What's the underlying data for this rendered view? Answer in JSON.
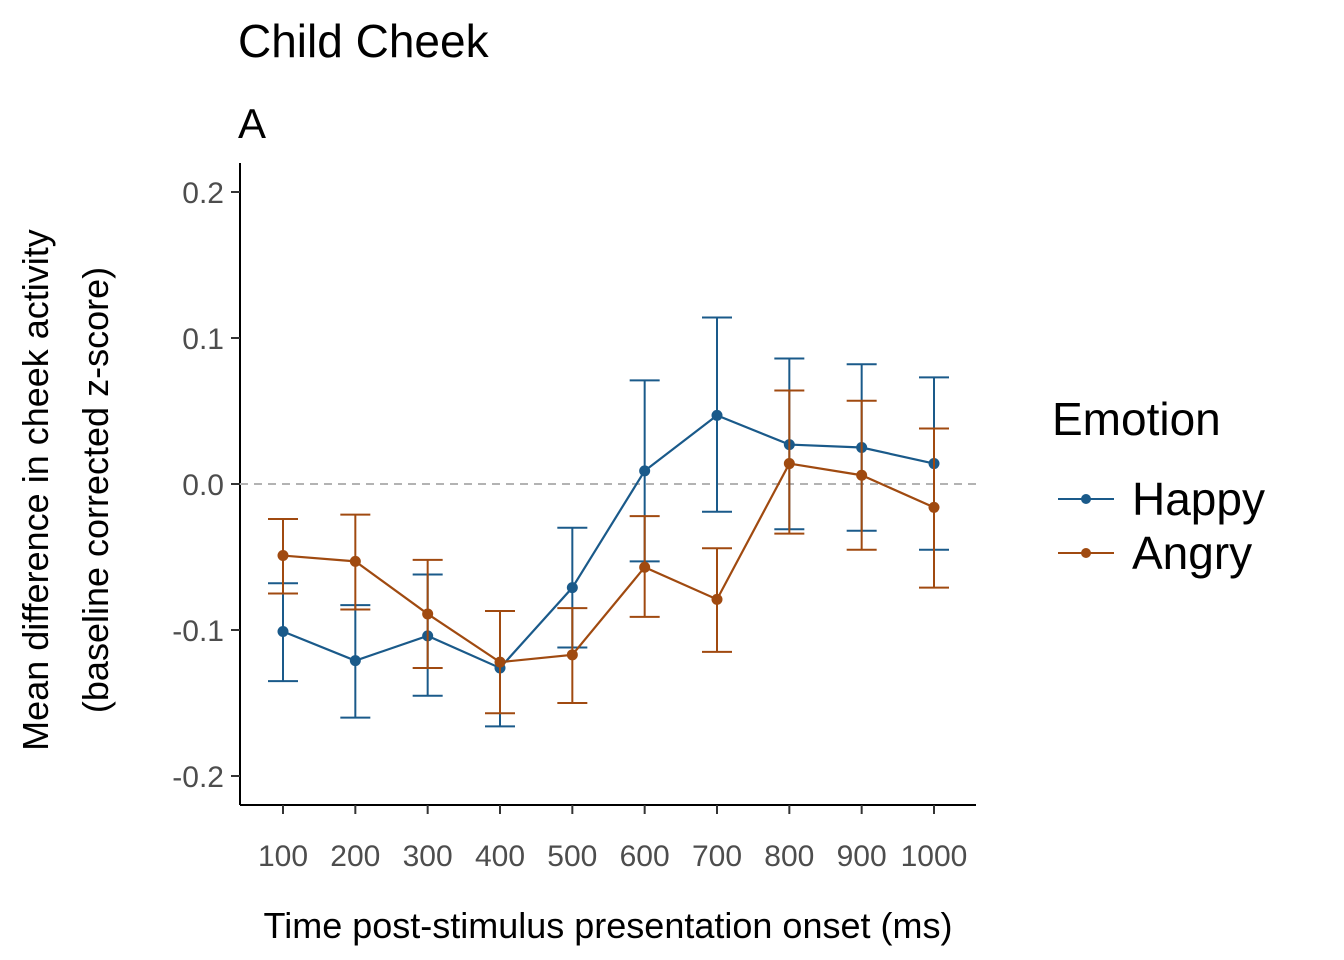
{
  "chart_data": {
    "type": "line",
    "title": "Child Cheek",
    "subtitle": "A",
    "xlabel": "Time post-stimulus presentation onset (ms)",
    "ylabel_line1": "Mean difference in cheek activity",
    "ylabel_line2": "(baseline corrected z-score)",
    "categories": [
      "100",
      "200",
      "300",
      "400",
      "500",
      "600",
      "700",
      "800",
      "900",
      "1000"
    ],
    "ylim": [
      -0.22,
      0.22
    ],
    "yticks": [
      -0.2,
      -0.1,
      0.0,
      0.1,
      0.2
    ],
    "ytick_labels": [
      "-0.2",
      "-0.1",
      "0.0",
      "0.1",
      "0.2"
    ],
    "reference_line": 0.0,
    "grid": false,
    "legend": {
      "title": "Emotion",
      "placement": "right"
    },
    "series": [
      {
        "name": "Happy",
        "color": "#1a5a8a",
        "values": [
          -0.101,
          -0.121,
          -0.104,
          -0.126,
          -0.071,
          0.009,
          0.047,
          0.027,
          0.025,
          0.014
        ],
        "err_low": [
          -0.135,
          -0.16,
          -0.145,
          -0.166,
          -0.112,
          -0.053,
          -0.019,
          -0.031,
          -0.032,
          -0.045
        ],
        "err_high": [
          -0.068,
          -0.083,
          -0.062,
          -0.087,
          -0.03,
          0.071,
          0.114,
          0.086,
          0.082,
          0.073
        ]
      },
      {
        "name": "Angry",
        "color": "#a04a10",
        "values": [
          -0.049,
          -0.053,
          -0.089,
          -0.122,
          -0.117,
          -0.057,
          -0.079,
          0.014,
          0.006,
          -0.016
        ],
        "err_low": [
          -0.075,
          -0.086,
          -0.126,
          -0.157,
          -0.15,
          -0.091,
          -0.115,
          -0.034,
          -0.045,
          -0.071
        ],
        "err_high": [
          -0.024,
          -0.021,
          -0.052,
          -0.087,
          -0.085,
          -0.022,
          -0.044,
          0.064,
          0.057,
          0.038
        ]
      }
    ]
  }
}
